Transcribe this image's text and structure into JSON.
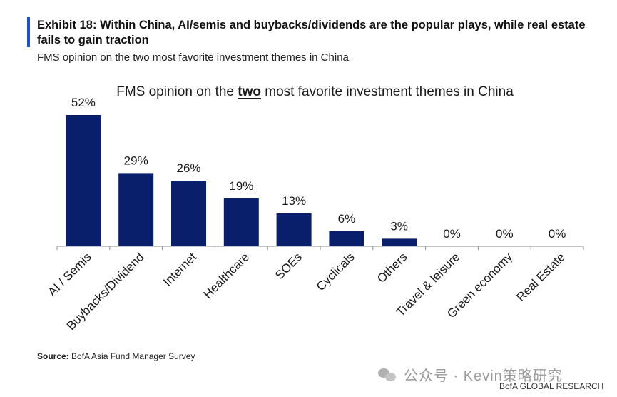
{
  "header": {
    "title": "Exhibit 18: Within China, AI/semis and buybacks/dividends are the popular plays, while real estate fails to gain traction",
    "subtitle": "FMS opinion on the two most favorite investment themes in China"
  },
  "chart_title": {
    "before": "FMS opinion on the ",
    "emphasis": "two",
    "after": " most favorite investment themes in China"
  },
  "chart_data": {
    "type": "bar",
    "categories": [
      "AI / Semis",
      "Buybacks/Dividend",
      "Internet",
      "Healthcare",
      "SOEs",
      "Cyclicals",
      "Others",
      "Travel & leisure",
      "Green economy",
      "Real Estate"
    ],
    "values": [
      52,
      29,
      26,
      19,
      13,
      6,
      3,
      0,
      0,
      0
    ],
    "data_labels": [
      "52%",
      "29%",
      "26%",
      "19%",
      "13%",
      "6%",
      "3%",
      "0%",
      "0%",
      "0%"
    ],
    "unit": "%",
    "ylim": [
      0,
      52
    ],
    "bar_color": "#0a1f6b",
    "grid": false,
    "legend": "none"
  },
  "source": {
    "label": "Source:",
    "text": " BofA Asia Fund Manager Survey"
  },
  "watermark": {
    "text": "公众号 · Kevin策略研究",
    "icon": "wechat-icon"
  },
  "footer": {
    "brand": "BofA GLOBAL RESEARCH"
  }
}
